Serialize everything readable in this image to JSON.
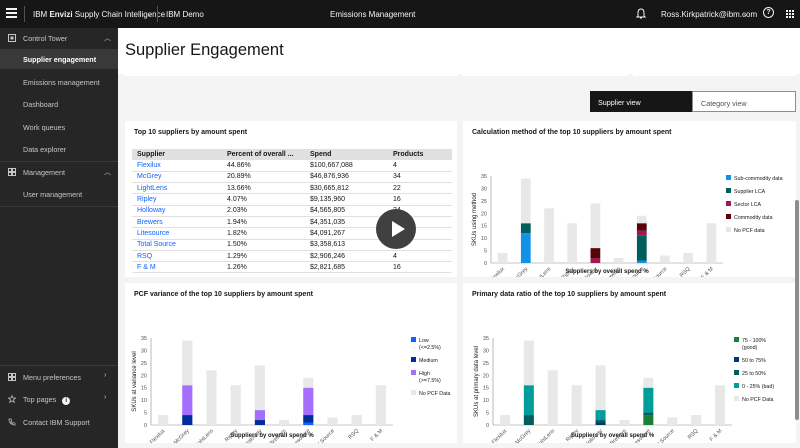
{
  "topbar": {
    "brand_prefix": "IBM ",
    "brand": "Envizi",
    "brand_suffix": " Supply Chain Intelligence",
    "tenant": "IBM Demo",
    "page": "Emissions Management",
    "user": "Ross.Kirkpatrick@ibm.com",
    "help": "?"
  },
  "sidebar": {
    "items": [
      {
        "label": "Control Tower"
      },
      {
        "label": "Supplier engagement"
      },
      {
        "label": "Emissions management"
      },
      {
        "label": "Dashboard"
      },
      {
        "label": "Work queues"
      },
      {
        "label": "Data explorer"
      },
      {
        "label": "Management"
      },
      {
        "label": "User management"
      }
    ],
    "bottom": [
      {
        "label": "Menu preferences"
      },
      {
        "label": "Top pages"
      },
      {
        "label": "Contact IBM Support"
      }
    ]
  },
  "main": {
    "title": "Supplier Engagement",
    "view_toggle": [
      "Supplier view",
      "Category view"
    ]
  },
  "table_card": {
    "title": "Top 10 suppliers by amount spent",
    "headers": [
      "Supplier",
      "Percent of overall ...",
      "Spend",
      "Products"
    ],
    "rows": [
      [
        "Flexilux",
        "44.86%",
        "$100,667,088",
        "4"
      ],
      [
        "McGrey",
        "20.89%",
        "$46,876,936",
        "34"
      ],
      [
        "LightLens",
        "13.66%",
        "$30,665,812",
        "22"
      ],
      [
        "Ripley",
        "4.07%",
        "$9,135,960",
        "16"
      ],
      [
        "Holloway",
        "2.03%",
        "$4,565,805",
        "24"
      ],
      [
        "Brewers",
        "1.94%",
        "$4,351,035",
        ""
      ],
      [
        "Litesource",
        "1.82%",
        "$4,091,267",
        ""
      ],
      [
        "Total Source",
        "1.50%",
        "$3,358,613",
        ""
      ],
      [
        "RSQ",
        "1.29%",
        "$2,906,246",
        "4"
      ],
      [
        "F & M",
        "1.26%",
        "$2,821,685",
        "16"
      ]
    ]
  },
  "chart_data": [
    {
      "id": "calc",
      "type": "bar",
      "title": "Calculation method of the top 10 suppliers by amount spent",
      "ylabel": "SKUs using method",
      "xlabel": "Suppliers by overall spend %",
      "ylim": [
        0,
        35
      ],
      "yticks": [
        0,
        5,
        10,
        15,
        20,
        25,
        30,
        35
      ],
      "categories": [
        "Flexilux",
        "McGrey",
        "LightLens",
        "Ripley",
        "Holloway",
        "Brewers",
        "Litesource",
        "Total Source",
        "RSQ",
        "F & M"
      ],
      "series": [
        {
          "name": "Sub-commodity data",
          "color": "#1192e8",
          "values": [
            0,
            12,
            0,
            0,
            0,
            0,
            1,
            0,
            0,
            0
          ]
        },
        {
          "name": "Supplier LCA",
          "color": "#005d5d",
          "values": [
            0,
            4,
            0,
            0,
            0,
            0,
            10,
            0,
            0,
            0
          ]
        },
        {
          "name": "Sector LCA",
          "color": "#9f1853",
          "values": [
            0,
            0,
            0,
            0,
            2,
            0,
            2,
            0,
            0,
            0
          ]
        },
        {
          "name": "Commodity data",
          "color": "#570408",
          "values": [
            0,
            0,
            0,
            0,
            4,
            0,
            3,
            0,
            0,
            0
          ]
        },
        {
          "name": "No PCF data",
          "color": "#e8e8e8",
          "values": [
            4,
            18,
            22,
            16,
            18,
            2,
            3,
            3,
            4,
            16
          ]
        }
      ]
    },
    {
      "id": "pcf",
      "type": "bar",
      "title": "PCF variance of the top 10 suppliers by amount spent",
      "ylabel": "SKUs at variance level",
      "xlabel": "Suppliers by overall spend %",
      "ylim": [
        0,
        35
      ],
      "yticks": [
        0,
        5,
        10,
        15,
        20,
        25,
        30,
        35
      ],
      "categories": [
        "Flexilux",
        "McGrey",
        "LightLens",
        "Ripley",
        "Holloway",
        "Brewers",
        "Litesource",
        "Total Source",
        "RSQ",
        "F & M"
      ],
      "series": [
        {
          "name": "Low (<=2.5%)",
          "legend": [
            "Low",
            "(<=2.5%)"
          ],
          "color": "#0f62fe",
          "values": [
            0,
            0,
            0,
            0,
            0,
            0,
            1,
            0,
            0,
            0
          ]
        },
        {
          "name": "Medium",
          "legend": [
            "Medium"
          ],
          "color": "#002d9c",
          "values": [
            0,
            4,
            0,
            0,
            2,
            0,
            3,
            0,
            0,
            0
          ]
        },
        {
          "name": "High (>=7.5%)",
          "legend": [
            "High",
            "(>=7.5%)"
          ],
          "color": "#a56eff",
          "values": [
            0,
            12,
            0,
            0,
            4,
            0,
            11,
            0,
            0,
            0
          ]
        },
        {
          "name": "No PCF Data",
          "legend": [
            "No PCF Data"
          ],
          "color": "#e8e8e8",
          "values": [
            4,
            18,
            22,
            16,
            18,
            2,
            4,
            3,
            4,
            16
          ]
        }
      ]
    },
    {
      "id": "pdr",
      "type": "bar",
      "title": "Primary data ratio of the top 10 suppliers by amount spent",
      "ylabel": "SKUs at primary data level",
      "xlabel": "Suppliers by overall spend %",
      "ylim": [
        0,
        35
      ],
      "yticks": [
        0,
        5,
        10,
        15,
        20,
        25,
        30,
        35
      ],
      "categories": [
        "Flexilux",
        "McGrey",
        "LightLens",
        "Ripley",
        "Holloway",
        "Brewers",
        "Litesource",
        "Total Source",
        "RSQ",
        "F & M"
      ],
      "series": [
        {
          "name": "75 - 100% (good)",
          "legend": [
            "75 - 100%",
            "(good)"
          ],
          "color": "#198038",
          "values": [
            0,
            0,
            0,
            0,
            0,
            0,
            4,
            0,
            0,
            0
          ]
        },
        {
          "name": "50 to 75%",
          "legend": [
            "50 to 75%"
          ],
          "color": "#003a6d",
          "values": [
            0,
            0,
            0,
            0,
            1,
            0,
            0,
            0,
            0,
            0
          ]
        },
        {
          "name": "25 to 50%",
          "legend": [
            "25 to 50%"
          ],
          "color": "#005d5d",
          "values": [
            0,
            4,
            0,
            0,
            1,
            0,
            1,
            0,
            0,
            0
          ]
        },
        {
          "name": "0 - 25% (bad)",
          "legend": [
            "0 - 25% (bad)"
          ],
          "color": "#009d9a",
          "values": [
            0,
            12,
            0,
            0,
            4,
            0,
            10,
            0,
            0,
            0
          ]
        },
        {
          "name": "No PCF Data",
          "legend": [
            "No PCF Data"
          ],
          "color": "#e8e8e8",
          "values": [
            4,
            18,
            22,
            16,
            18,
            2,
            4,
            3,
            4,
            16
          ]
        }
      ]
    }
  ]
}
